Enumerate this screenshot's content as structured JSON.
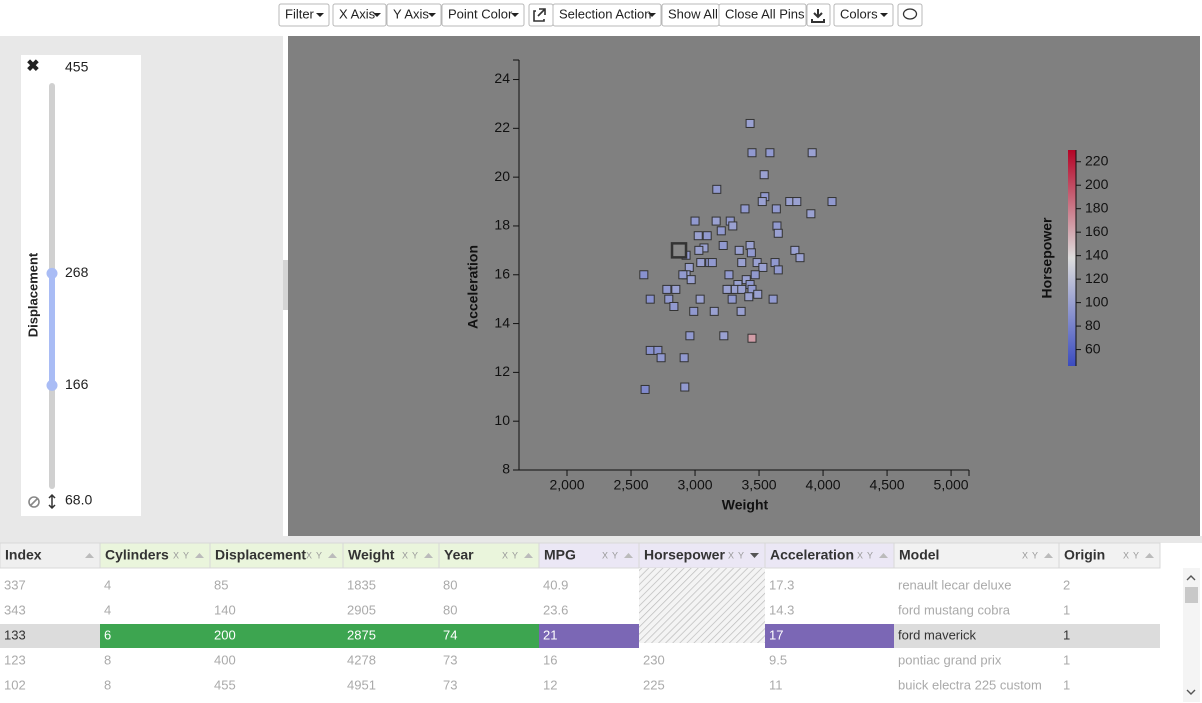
{
  "toolbar": {
    "buttons": [
      "Filter",
      "X Axis",
      "Y Axis",
      "Point Color",
      "Selection Action",
      "Show All",
      "Close All Pins",
      "Colors"
    ]
  },
  "filter": {
    "label": "Displacement",
    "max": 455,
    "min": {
      "value": 68,
      "label": "68.0"
    },
    "range": [
      166,
      268
    ]
  },
  "chart_data": {
    "type": "scatter",
    "x_label": "Weight",
    "y_label": "Acceleration",
    "x": [
      3430,
      3445,
      3585,
      3915,
      3540,
      3170,
      3545,
      3525,
      3390,
      3740,
      3795,
      4070,
      3635,
      3905,
      3000,
      3165,
      3275,
      3640,
      3650,
      3295,
      3205,
      3025,
      3095,
      2875,
      3430,
      3220,
      3070,
      3345,
      2930,
      3030,
      3440,
      3780,
      3820,
      3115,
      3045,
      3135,
      3365,
      3485,
      3625,
      2955,
      3530,
      3650,
      3265,
      2600,
      2930,
      2905,
      2970,
      3470,
      3400,
      3335,
      3430,
      2780,
      2850,
      3275,
      3315,
      3365,
      3445,
      3250,
      2650,
      2795,
      3040,
      3290,
      3420,
      3610,
      3490,
      2835,
      2990,
      3150,
      3360,
      2960,
      3225,
      3445,
      2650,
      2710,
      2735,
      2915,
      2610,
      2920
    ],
    "y": [
      22.2,
      21.0,
      21.0,
      21.0,
      20.1,
      19.5,
      19.2,
      19.0,
      18.7,
      19.0,
      19.0,
      19.0,
      18.7,
      18.5,
      18.2,
      18.2,
      18.2,
      18.0,
      17.7,
      18.0,
      17.8,
      17.6,
      17.6,
      17.0,
      17.2,
      17.2,
      17.1,
      17.0,
      16.8,
      17.0,
      16.9,
      17.0,
      16.7,
      16.5,
      16.5,
      16.5,
      16.5,
      16.5,
      16.5,
      16.3,
      16.3,
      16.2,
      16.0,
      16.0,
      16.0,
      16.0,
      15.8,
      16.0,
      15.8,
      15.6,
      15.6,
      15.4,
      15.4,
      15.4,
      15.4,
      15.4,
      15.4,
      15.4,
      15.0,
      15.0,
      15.0,
      15.0,
      15.1,
      15.0,
      15.2,
      14.7,
      14.5,
      14.5,
      14.5,
      13.5,
      13.5,
      13.4,
      12.9,
      12.9,
      12.6,
      12.6,
      11.3,
      11.4
    ],
    "color_values": [
      100,
      95,
      95,
      100,
      100,
      95,
      95,
      100,
      95,
      100,
      100,
      95,
      95,
      100,
      95,
      100,
      95,
      95,
      100,
      100,
      95,
      100,
      95,
      100,
      100,
      95,
      100,
      100,
      95,
      100,
      95,
      100,
      100,
      95,
      100,
      95,
      100,
      100,
      95,
      100,
      100,
      95,
      95,
      90,
      100,
      95,
      100,
      95,
      100,
      100,
      95,
      95,
      100,
      95,
      100,
      100,
      95,
      100,
      90,
      95,
      100,
      95,
      100,
      95,
      100,
      95,
      95,
      100,
      100,
      95,
      100,
      165,
      90,
      90,
      95,
      95,
      85,
      95
    ],
    "color_label": "Horsepower",
    "color_lim": [
      46,
      230
    ],
    "color_ticks": [
      60,
      80,
      100,
      120,
      140,
      160,
      180,
      200,
      220
    ],
    "xlim": [
      1625,
      5140
    ],
    "ylim": [
      8,
      24.8
    ],
    "xticks": [
      {
        "value": 2000,
        "label": "2,000"
      },
      {
        "value": 2500,
        "label": "2,500"
      },
      {
        "value": 3000,
        "label": "3,000"
      },
      {
        "value": 3500,
        "label": "3,500"
      },
      {
        "value": 4000,
        "label": "4,000"
      },
      {
        "value": 4500,
        "label": "4,500"
      },
      {
        "value": 5000,
        "label": "5,000"
      }
    ],
    "yticks": [
      8,
      10,
      12,
      14,
      16,
      18,
      20,
      22,
      24
    ]
  },
  "table": {
    "axis_toggle": [
      "X",
      "Y"
    ],
    "columns": [
      "Index",
      "Cylinders",
      "Displacement",
      "Weight",
      "Year",
      "MPG",
      "Horsepower",
      "Acceleration",
      "Model",
      "Origin"
    ],
    "rows": [
      [
        337,
        4,
        85,
        1835,
        80,
        40.9,
        null,
        17.3,
        "renault lecar deluxe",
        2
      ],
      [
        343,
        4,
        140,
        2905,
        80,
        23.6,
        null,
        14.3,
        "ford mustang cobra",
        1
      ],
      [
        133,
        6,
        200,
        2875,
        74,
        21,
        null,
        17,
        "ford maverick",
        1
      ],
      [
        123,
        8,
        400,
        4278,
        73,
        16,
        230,
        9.5,
        "pontiac grand prix",
        1
      ],
      [
        102,
        8,
        455,
        4951,
        73,
        12,
        225,
        11,
        "buick electra 225 custom",
        1
      ]
    ]
  }
}
